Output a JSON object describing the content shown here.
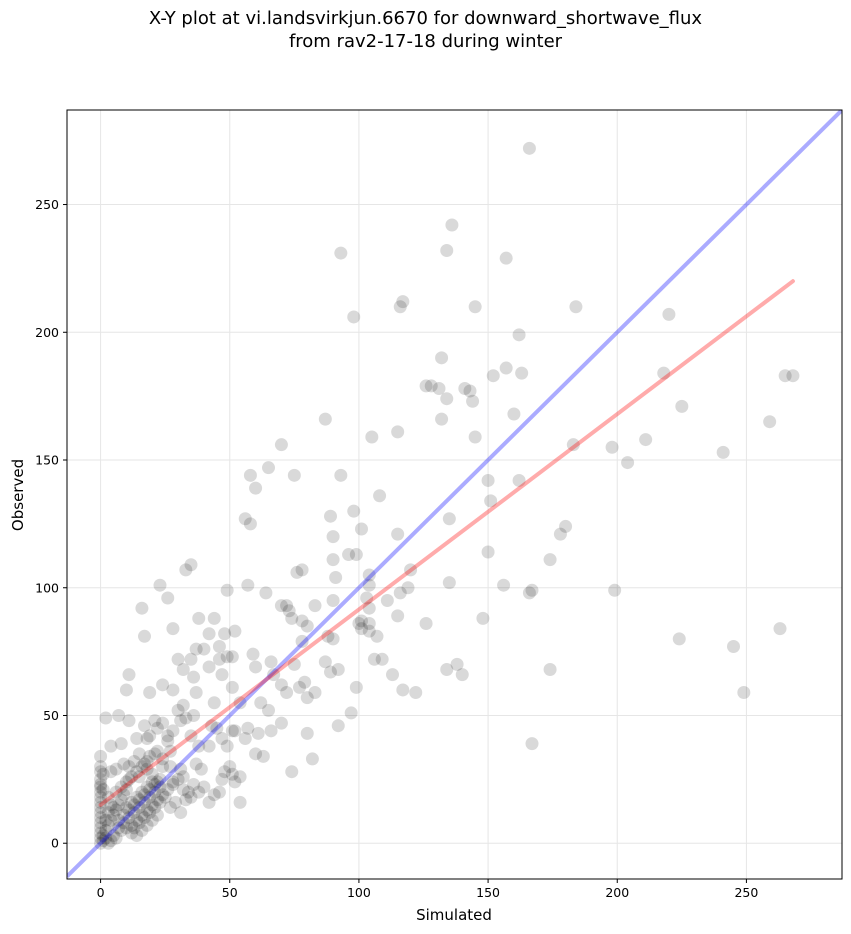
{
  "chart_data": {
    "type": "scatter",
    "title_line1": "X-Y plot at vi.landsvirkjun.6670 for downward_shortwave_flux",
    "title_line2": "from rav2-17-18 during winter",
    "xlabel": "Simulated",
    "ylabel": "Observed",
    "xlim": [
      -13,
      287
    ],
    "ylim": [
      -14,
      287
    ],
    "xticks": [
      0,
      50,
      100,
      150,
      200,
      250
    ],
    "yticks": [
      0,
      50,
      100,
      150,
      200,
      250
    ],
    "grid": true,
    "point_color": "#000000",
    "identity_line": {
      "color": "#0000ff",
      "x": [
        -13,
        287
      ],
      "y": [
        -13,
        287
      ]
    },
    "fit_line": {
      "color": "#ff0000",
      "x": [
        0,
        268
      ],
      "y": [
        15,
        220
      ]
    },
    "points": [
      [
        166,
        272
      ],
      [
        136,
        242
      ],
      [
        93,
        231
      ],
      [
        134,
        232
      ],
      [
        157,
        229
      ],
      [
        98,
        206
      ],
      [
        116,
        210
      ],
      [
        117,
        212
      ],
      [
        145,
        210
      ],
      [
        184,
        210
      ],
      [
        220,
        207
      ],
      [
        162,
        199
      ],
      [
        132,
        190
      ],
      [
        157,
        186
      ],
      [
        163,
        184
      ],
      [
        152,
        183
      ],
      [
        218,
        184
      ],
      [
        265,
        183
      ],
      [
        268,
        183
      ],
      [
        126,
        179
      ],
      [
        128,
        179
      ],
      [
        131,
        178
      ],
      [
        141,
        178
      ],
      [
        143,
        177
      ],
      [
        144,
        173
      ],
      [
        134,
        174
      ],
      [
        160,
        168
      ],
      [
        132,
        166
      ],
      [
        87,
        166
      ],
      [
        225,
        171
      ],
      [
        259,
        165
      ],
      [
        145,
        159
      ],
      [
        211,
        158
      ],
      [
        105,
        159
      ],
      [
        115,
        161
      ],
      [
        70,
        156
      ],
      [
        183,
        156
      ],
      [
        198,
        155
      ],
      [
        241,
        153
      ],
      [
        204,
        149
      ],
      [
        58,
        144
      ],
      [
        65,
        147
      ],
      [
        93,
        144
      ],
      [
        75,
        144
      ],
      [
        60,
        139
      ],
      [
        150,
        142
      ],
      [
        162,
        142
      ],
      [
        108,
        136
      ],
      [
        151,
        134
      ],
      [
        98,
        130
      ],
      [
        56,
        127
      ],
      [
        89,
        128
      ],
      [
        135,
        127
      ],
      [
        58,
        125
      ],
      [
        180,
        124
      ],
      [
        178,
        121
      ],
      [
        115,
        121
      ],
      [
        90,
        120
      ],
      [
        101,
        123
      ],
      [
        99,
        113
      ],
      [
        96,
        113
      ],
      [
        150,
        114
      ],
      [
        90,
        111
      ],
      [
        174,
        111
      ],
      [
        78,
        107
      ],
      [
        33,
        107
      ],
      [
        35,
        109
      ],
      [
        76,
        106
      ],
      [
        120,
        107
      ],
      [
        104,
        105
      ],
      [
        104,
        101
      ],
      [
        91,
        104
      ],
      [
        135,
        102
      ],
      [
        156,
        101
      ],
      [
        57,
        101
      ],
      [
        23,
        101
      ],
      [
        49,
        99
      ],
      [
        64,
        98
      ],
      [
        167,
        99
      ],
      [
        166,
        98
      ],
      [
        199,
        99
      ],
      [
        116,
        98
      ],
      [
        119,
        100
      ],
      [
        26,
        96
      ],
      [
        103,
        96
      ],
      [
        90,
        95
      ],
      [
        111,
        95
      ],
      [
        72,
        93
      ],
      [
        70,
        93
      ],
      [
        83,
        93
      ],
      [
        16,
        92
      ],
      [
        73,
        91
      ],
      [
        104,
        92
      ],
      [
        115,
        89
      ],
      [
        148,
        88
      ],
      [
        126,
        86
      ],
      [
        74,
        88
      ],
      [
        101,
        87
      ],
      [
        78,
        87
      ],
      [
        100,
        86
      ],
      [
        104,
        86
      ],
      [
        38,
        88
      ],
      [
        44,
        88
      ],
      [
        80,
        85
      ],
      [
        48,
        82
      ],
      [
        42,
        82
      ],
      [
        28,
        84
      ],
      [
        17,
        81
      ],
      [
        52,
        83
      ],
      [
        101,
        84
      ],
      [
        104,
        83
      ],
      [
        90,
        80
      ],
      [
        88,
        81
      ],
      [
        78,
        79
      ],
      [
        107,
        81
      ],
      [
        224,
        80
      ],
      [
        245,
        77
      ],
      [
        263,
        84
      ],
      [
        59,
        74
      ],
      [
        46,
        77
      ],
      [
        37,
        76
      ],
      [
        40,
        76
      ],
      [
        46,
        72
      ],
      [
        49,
        73
      ],
      [
        51,
        73
      ],
      [
        30,
        72
      ],
      [
        35,
        72
      ],
      [
        106,
        72
      ],
      [
        109,
        72
      ],
      [
        60,
        69
      ],
      [
        66,
        71
      ],
      [
        75,
        70
      ],
      [
        42,
        69
      ],
      [
        32,
        68
      ],
      [
        87,
        71
      ],
      [
        89,
        67
      ],
      [
        92,
        68
      ],
      [
        113,
        66
      ],
      [
        134,
        68
      ],
      [
        138,
        70
      ],
      [
        140,
        66
      ],
      [
        174,
        68
      ],
      [
        11,
        66
      ],
      [
        24,
        62
      ],
      [
        36,
        65
      ],
      [
        47,
        66
      ],
      [
        51,
        61
      ],
      [
        70,
        62
      ],
      [
        77,
        61
      ],
      [
        79,
        63
      ],
      [
        99,
        61
      ],
      [
        117,
        60
      ],
      [
        122,
        59
      ],
      [
        67,
        66
      ],
      [
        10,
        60
      ],
      [
        19,
        59
      ],
      [
        28,
        60
      ],
      [
        37,
        59
      ],
      [
        44,
        55
      ],
      [
        54,
        55
      ],
      [
        62,
        55
      ],
      [
        65,
        52
      ],
      [
        72,
        59
      ],
      [
        80,
        57
      ],
      [
        83,
        59
      ],
      [
        30,
        52
      ],
      [
        32,
        54
      ],
      [
        36,
        50
      ],
      [
        2,
        49
      ],
      [
        7,
        50
      ],
      [
        11,
        48
      ],
      [
        17,
        46
      ],
      [
        21,
        48
      ],
      [
        22,
        45
      ],
      [
        24,
        47
      ],
      [
        31,
        48
      ],
      [
        33,
        49
      ],
      [
        43,
        46
      ],
      [
        45,
        45
      ],
      [
        52,
        44
      ],
      [
        57,
        45
      ],
      [
        61,
        43
      ],
      [
        66,
        44
      ],
      [
        70,
        47
      ],
      [
        80,
        43
      ],
      [
        92,
        46
      ],
      [
        97,
        51
      ],
      [
        249,
        59
      ],
      [
        167,
        39
      ],
      [
        8,
        39
      ],
      [
        4,
        38
      ],
      [
        14,
        41
      ],
      [
        18,
        41
      ],
      [
        19,
        42
      ],
      [
        22,
        36
      ],
      [
        26,
        42
      ],
      [
        26,
        40
      ],
      [
        28,
        44
      ],
      [
        35,
        42
      ],
      [
        38,
        38
      ],
      [
        42,
        38
      ],
      [
        47,
        41
      ],
      [
        49,
        38
      ],
      [
        51,
        44
      ],
      [
        56,
        41
      ],
      [
        60,
        35
      ],
      [
        63,
        34
      ],
      [
        82,
        33
      ],
      [
        74,
        28
      ],
      [
        27,
        36
      ],
      [
        15,
        35
      ],
      [
        19,
        34
      ],
      [
        21,
        35
      ],
      [
        24,
        33
      ],
      [
        13,
        32
      ],
      [
        9,
        31
      ],
      [
        6,
        29
      ],
      [
        11,
        30
      ],
      [
        17,
        31
      ],
      [
        18,
        29
      ],
      [
        24,
        30
      ],
      [
        27,
        30
      ],
      [
        31,
        29
      ],
      [
        37,
        31
      ],
      [
        39,
        29
      ],
      [
        48,
        28
      ],
      [
        50,
        30
      ],
      [
        54,
        26
      ],
      [
        47,
        25
      ],
      [
        51,
        27
      ],
      [
        52,
        24
      ],
      [
        32,
        26
      ],
      [
        28,
        24
      ],
      [
        22,
        24
      ],
      [
        15,
        26
      ],
      [
        11,
        25
      ],
      [
        4,
        28
      ],
      [
        0,
        34
      ],
      [
        0,
        30
      ],
      [
        0,
        28
      ],
      [
        0,
        25
      ],
      [
        0,
        22
      ],
      [
        0,
        20
      ],
      [
        0,
        18
      ],
      [
        0,
        16
      ],
      [
        0,
        14
      ],
      [
        0,
        12
      ],
      [
        0,
        10
      ],
      [
        0,
        8
      ],
      [
        0,
        6
      ],
      [
        0,
        4
      ],
      [
        0,
        2
      ],
      [
        0,
        0
      ],
      [
        1,
        1
      ],
      [
        1,
        3
      ],
      [
        2,
        5
      ],
      [
        3,
        7
      ],
      [
        4,
        9
      ],
      [
        5,
        11
      ],
      [
        6,
        13
      ],
      [
        7,
        15
      ],
      [
        8,
        17
      ],
      [
        9,
        19
      ],
      [
        10,
        21
      ],
      [
        3,
        12
      ],
      [
        5,
        14
      ],
      [
        7,
        9
      ],
      [
        9,
        11
      ],
      [
        11,
        13
      ],
      [
        13,
        15
      ],
      [
        15,
        17
      ],
      [
        17,
        19
      ],
      [
        19,
        21
      ],
      [
        21,
        23
      ],
      [
        23,
        25
      ],
      [
        12,
        7
      ],
      [
        14,
        9
      ],
      [
        16,
        11
      ],
      [
        18,
        13
      ],
      [
        20,
        15
      ],
      [
        22,
        17
      ],
      [
        24,
        19
      ],
      [
        26,
        21
      ],
      [
        28,
        23
      ],
      [
        30,
        25
      ],
      [
        32,
        21
      ],
      [
        34,
        20
      ],
      [
        36,
        23
      ],
      [
        38,
        20
      ],
      [
        40,
        22
      ],
      [
        42,
        16
      ],
      [
        44,
        19
      ],
      [
        46,
        20
      ],
      [
        54,
        16
      ],
      [
        8,
        5
      ],
      [
        10,
        6
      ],
      [
        12,
        4
      ],
      [
        14,
        3
      ],
      [
        16,
        5
      ],
      [
        18,
        7
      ],
      [
        20,
        9
      ],
      [
        22,
        11
      ],
      [
        6,
        2
      ],
      [
        4,
        1
      ],
      [
        2,
        2
      ],
      [
        3,
        0
      ],
      [
        5,
        3
      ],
      [
        7,
        6
      ],
      [
        9,
        8
      ],
      [
        11,
        10
      ],
      [
        13,
        12
      ],
      [
        15,
        14
      ],
      [
        17,
        16
      ],
      [
        19,
        18
      ],
      [
        21,
        20
      ],
      [
        23,
        22
      ],
      [
        25,
        18
      ],
      [
        27,
        14
      ],
      [
        29,
        16
      ],
      [
        31,
        12
      ],
      [
        33,
        17
      ],
      [
        35,
        18
      ],
      [
        2,
        9
      ],
      [
        4,
        15
      ],
      [
        6,
        20
      ],
      [
        8,
        22
      ],
      [
        10,
        24
      ],
      [
        12,
        26
      ],
      [
        14,
        28
      ],
      [
        16,
        30
      ],
      [
        18,
        32
      ],
      [
        20,
        27
      ],
      [
        3,
        18
      ],
      [
        1,
        21
      ],
      [
        0,
        23
      ],
      [
        1,
        27
      ],
      [
        10,
        14
      ],
      [
        12,
        16
      ],
      [
        14,
        18
      ],
      [
        16,
        20
      ],
      [
        18,
        22
      ],
      [
        20,
        24
      ],
      [
        13,
        6
      ],
      [
        15,
        8
      ],
      [
        17,
        10
      ],
      [
        19,
        12
      ],
      [
        21,
        14
      ],
      [
        23,
        16
      ]
    ]
  }
}
